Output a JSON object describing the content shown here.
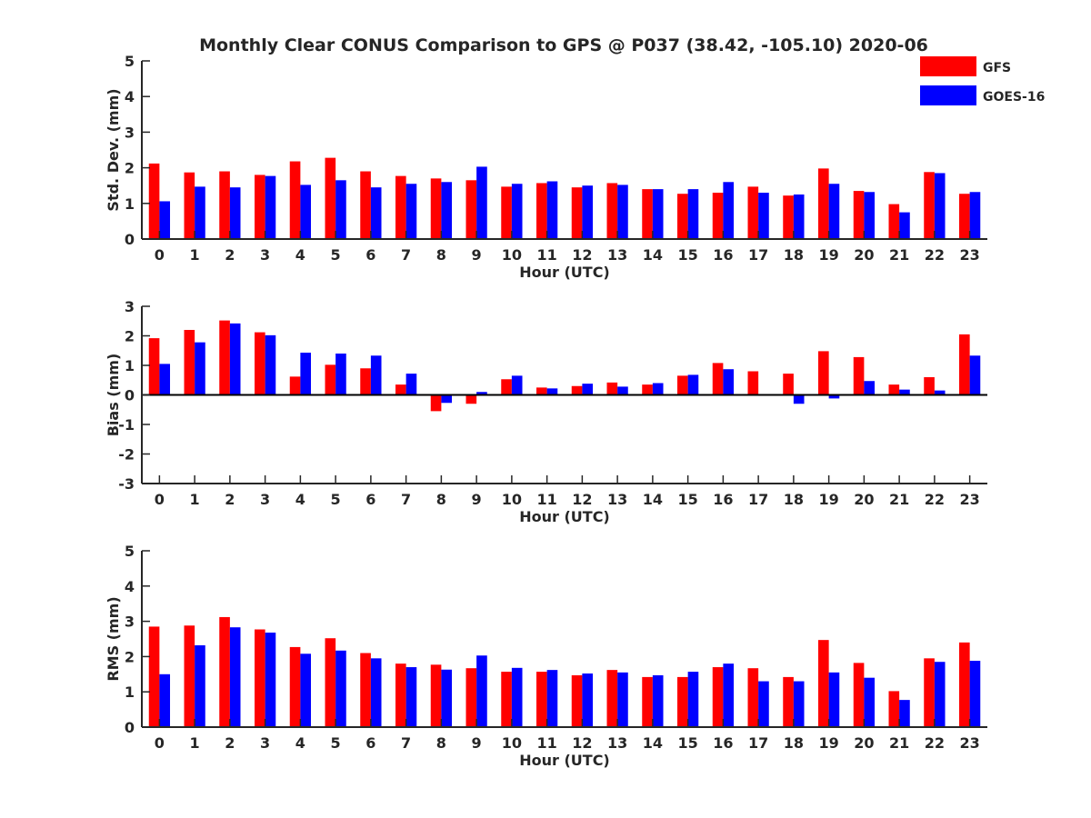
{
  "figure": {
    "title": "Monthly Clear CONUS Comparison to GPS @ P037 (38.42, -105.10) 2020-06"
  },
  "legend": {
    "placement": "top-right",
    "entries": [
      {
        "name": "GFS",
        "color": "#ff0000"
      },
      {
        "name": "GOES-16",
        "color": "#0000ff"
      }
    ]
  },
  "chart_data": [
    {
      "type": "bar",
      "title": "Monthly Clear CONUS Comparison to GPS @ P037 (38.42, -105.10) 2020-06",
      "xlabel": "Hour (UTC)",
      "ylabel": "Std. Dev. (mm)",
      "ylim": [
        0,
        5
      ],
      "yticks": [
        0,
        1,
        2,
        3,
        4,
        5
      ],
      "grid": false,
      "legend": "top-right",
      "categories": [
        "0",
        "1",
        "2",
        "3",
        "4",
        "5",
        "6",
        "7",
        "8",
        "9",
        "10",
        "11",
        "12",
        "13",
        "14",
        "15",
        "16",
        "17",
        "18",
        "19",
        "20",
        "21",
        "22",
        "23"
      ],
      "series": [
        {
          "name": "GFS",
          "color": "#ff0000",
          "values": [
            2.12,
            1.87,
            1.9,
            1.8,
            2.18,
            2.28,
            1.9,
            1.77,
            1.7,
            1.65,
            1.47,
            1.57,
            1.45,
            1.57,
            1.4,
            1.27,
            1.3,
            1.47,
            1.22,
            1.98,
            1.35,
            0.98,
            1.88,
            1.27
          ]
        },
        {
          "name": "GOES-16",
          "color": "#0000ff",
          "values": [
            1.06,
            1.47,
            1.45,
            1.77,
            1.52,
            1.65,
            1.45,
            1.55,
            1.6,
            2.03,
            1.55,
            1.62,
            1.5,
            1.52,
            1.4,
            1.4,
            1.6,
            1.3,
            1.25,
            1.55,
            1.32,
            0.75,
            1.85,
            1.32
          ]
        }
      ]
    },
    {
      "type": "bar",
      "xlabel": "Hour (UTC)",
      "ylabel": "Bias (mm)",
      "ylim": [
        -3,
        3
      ],
      "yticks": [
        -3,
        -2,
        -1,
        0,
        1,
        2,
        3
      ],
      "grid": false,
      "zero_line": true,
      "categories": [
        "0",
        "1",
        "2",
        "3",
        "4",
        "5",
        "6",
        "7",
        "8",
        "9",
        "10",
        "11",
        "12",
        "13",
        "14",
        "15",
        "16",
        "17",
        "18",
        "19",
        "20",
        "21",
        "22",
        "23"
      ],
      "series": [
        {
          "name": "GFS",
          "color": "#ff0000",
          "values": [
            1.92,
            2.2,
            2.52,
            2.12,
            0.62,
            1.02,
            0.9,
            0.35,
            -0.55,
            -0.3,
            0.53,
            0.25,
            0.3,
            0.42,
            0.35,
            0.65,
            1.08,
            0.8,
            0.72,
            1.48,
            1.28,
            0.35,
            0.6,
            2.05
          ]
        },
        {
          "name": "GOES-16",
          "color": "#0000ff",
          "values": [
            1.05,
            1.78,
            2.42,
            2.02,
            1.43,
            1.4,
            1.33,
            0.72,
            -0.27,
            0.1,
            0.65,
            0.22,
            0.38,
            0.28,
            0.4,
            0.68,
            0.87,
            0.03,
            -0.3,
            -0.12,
            0.47,
            0.18,
            0.15,
            1.33
          ]
        }
      ]
    },
    {
      "type": "bar",
      "xlabel": "Hour (UTC)",
      "ylabel": "RMS (mm)",
      "ylim": [
        0,
        5
      ],
      "yticks": [
        0,
        1,
        2,
        3,
        4,
        5
      ],
      "grid": false,
      "categories": [
        "0",
        "1",
        "2",
        "3",
        "4",
        "5",
        "6",
        "7",
        "8",
        "9",
        "10",
        "11",
        "12",
        "13",
        "14",
        "15",
        "16",
        "17",
        "18",
        "19",
        "20",
        "21",
        "22",
        "23"
      ],
      "series": [
        {
          "name": "GFS",
          "color": "#ff0000",
          "values": [
            2.85,
            2.88,
            3.12,
            2.77,
            2.27,
            2.52,
            2.1,
            1.8,
            1.77,
            1.67,
            1.57,
            1.57,
            1.47,
            1.62,
            1.42,
            1.42,
            1.7,
            1.67,
            1.42,
            2.47,
            1.82,
            1.02,
            1.95,
            2.4
          ]
        },
        {
          "name": "GOES-16",
          "color": "#0000ff",
          "values": [
            1.5,
            2.32,
            2.83,
            2.68,
            2.08,
            2.17,
            1.95,
            1.7,
            1.63,
            2.03,
            1.68,
            1.62,
            1.52,
            1.55,
            1.47,
            1.57,
            1.8,
            1.3,
            1.3,
            1.55,
            1.4,
            0.77,
            1.85,
            1.88
          ]
        }
      ]
    }
  ]
}
